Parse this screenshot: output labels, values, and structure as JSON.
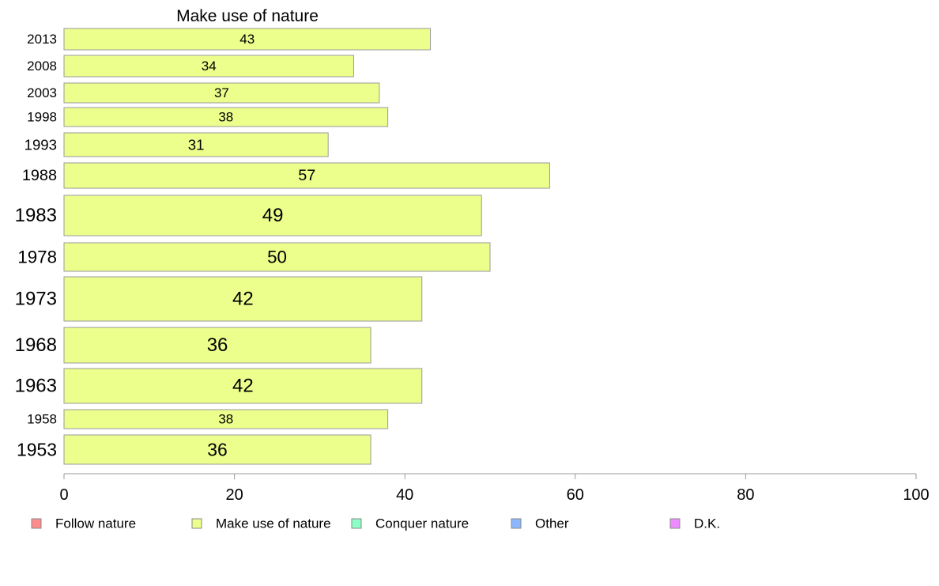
{
  "chart_data": {
    "type": "bar",
    "orientation": "horizontal",
    "title": "Make use of nature",
    "categories": [
      "2013",
      "2008",
      "2003",
      "1998",
      "1993",
      "1988",
      "1983",
      "1978",
      "1973",
      "1968",
      "1963",
      "1958",
      "1953"
    ],
    "values": [
      43,
      34,
      37,
      38,
      31,
      57,
      49,
      50,
      42,
      36,
      42,
      38,
      36
    ],
    "data_labels": [
      "43",
      "34",
      "37",
      "38",
      "31",
      "57",
      "49",
      "50",
      "42",
      "36",
      "42",
      "38",
      "36"
    ],
    "xlim": [
      0,
      100
    ],
    "x_ticks": [
      "0",
      "20",
      "40",
      "60",
      "80",
      "100"
    ],
    "grid": false,
    "bar_color": "#ecff8c",
    "legend_position": "bottom",
    "legend": [
      {
        "label": "Follow nature",
        "color": "#ff8c8c"
      },
      {
        "label": "Make use of nature",
        "color": "#ecff8c"
      },
      {
        "label": "Conquer nature",
        "color": "#8cffc6"
      },
      {
        "label": "Other",
        "color": "#8cb8ff"
      },
      {
        "label": "D.K.",
        "color": "#ec8cff"
      }
    ]
  }
}
